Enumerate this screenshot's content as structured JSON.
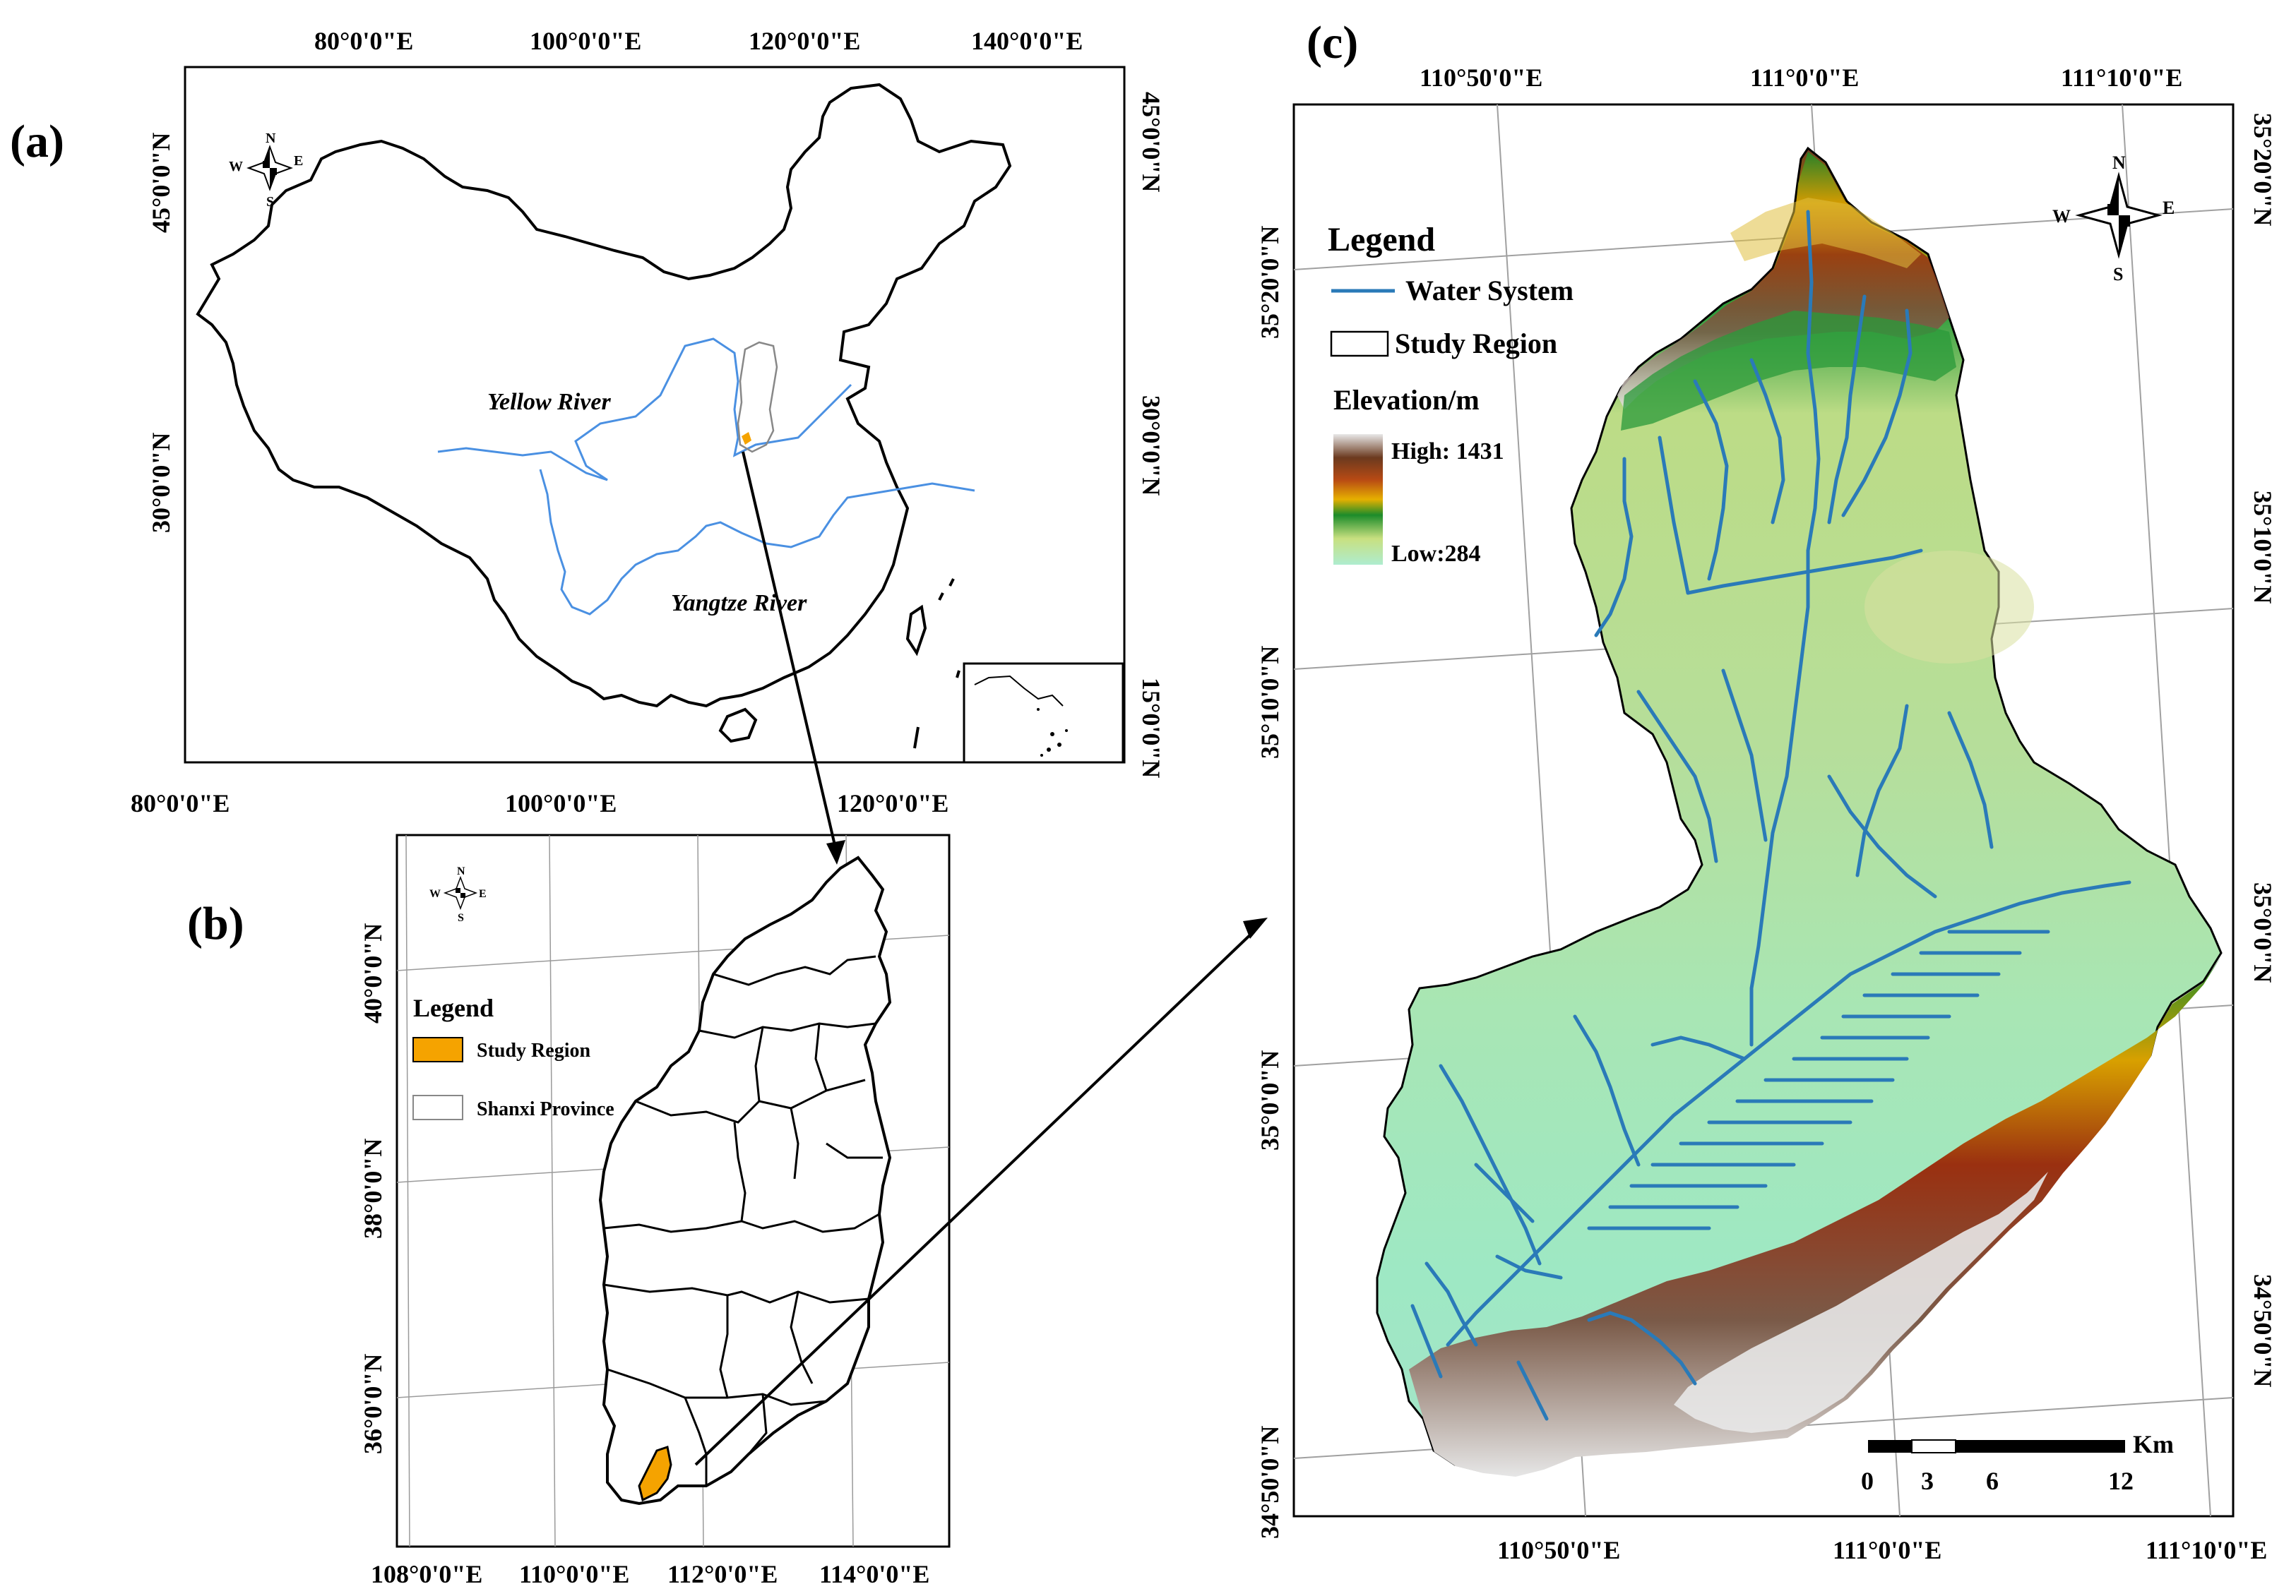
{
  "panels": {
    "a": {
      "label": "(a)",
      "lon_ticks": [
        "80°0'0\"E",
        "100°0'0\"E",
        "120°0'0\"E",
        "140°0'0\"E"
      ],
      "lon_ticks_bottom": [
        "80°0'0\"E",
        "100°0'0\"E",
        "120°0'0\"E"
      ],
      "lat_ticks_left": [
        "45°0'0\"N",
        "30°0'0\"N"
      ],
      "lat_ticks_right": [
        "45°0'0\"N",
        "30°0'0\"N",
        "15°0'0\"N"
      ],
      "rivers": [
        "Yellow River",
        "Yangtze River"
      ],
      "compass": {
        "n": "N",
        "s": "S",
        "e": "E",
        "w": "W"
      }
    },
    "b": {
      "label": "(b)",
      "lon_ticks": [
        "108°0'0\"E",
        "110°0'0\"E",
        "112°0'0\"E",
        "114°0'0\"E"
      ],
      "lat_ticks": [
        "40°0'0\"N",
        "38°0'0\"N",
        "36°0'0\"N"
      ],
      "legend_title": "Legend",
      "legend_items": [
        "Study Region",
        "Shanxi Province"
      ],
      "compass": {
        "n": "N",
        "s": "S",
        "e": "E",
        "w": "W"
      }
    },
    "c": {
      "label": "(c)",
      "lon_ticks_top": [
        "110°50'0\"E",
        "111°0'0\"E",
        "111°10'0\"E"
      ],
      "lon_ticks_bottom": [
        "110°50'0\"E",
        "111°0'0\"E",
        "111°10'0\"E"
      ],
      "lat_ticks_left": [
        "35°20'0\"N",
        "35°10'0\"N",
        "35°0'0\"N",
        "34°50'0\"N"
      ],
      "lat_ticks_right": [
        "35°20'0\"N",
        "35°10'0\"N",
        "35°0'0\"N",
        "34°50'0\"N"
      ],
      "legend_title": "Legend",
      "legend_items": [
        "Water System",
        "Study Region"
      ],
      "elevation_title": "Elevation/m",
      "elevation_high": "High: 1431",
      "elevation_low": "Low:284",
      "scale_unit": "Km",
      "scale_ticks": [
        "0",
        "3",
        "6",
        "12"
      ],
      "compass": {
        "n": "N",
        "s": "S",
        "e": "E",
        "w": "W"
      }
    }
  },
  "colors": {
    "river": "#4a90e2",
    "water_system": "#2a7ab8",
    "study_region": "#f5a300",
    "frame": "#000000",
    "grid": "#9a9a9a"
  }
}
